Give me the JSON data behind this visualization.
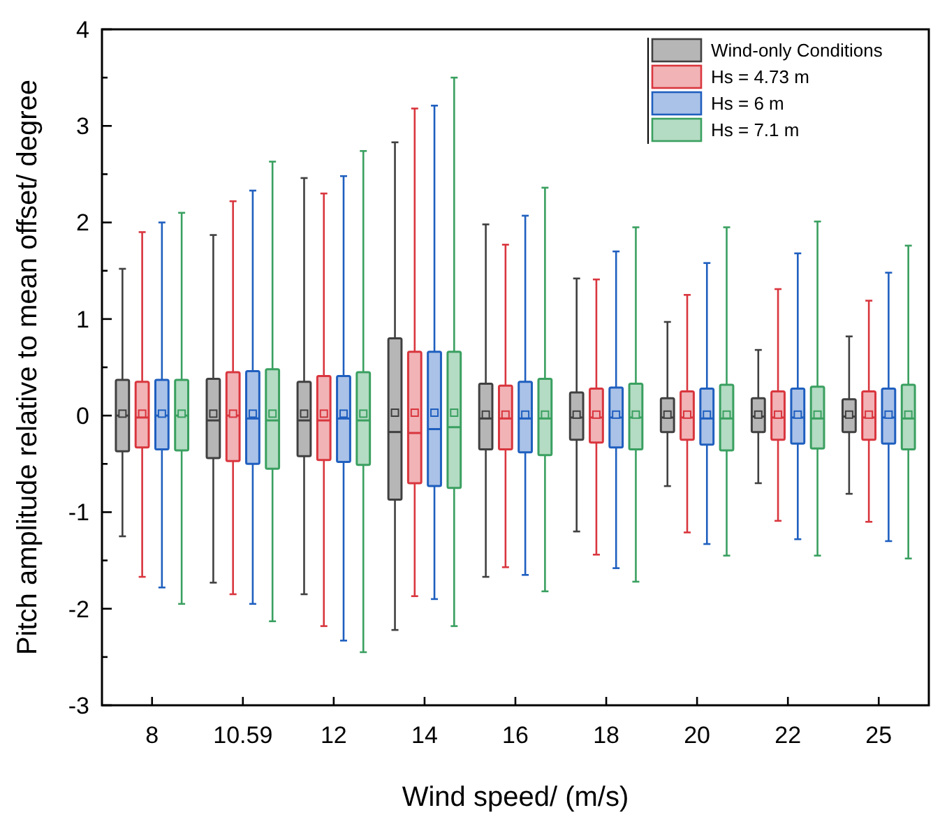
{
  "chart_data": {
    "type": "box",
    "xlabel": "Wind speed/ (m/s)",
    "ylabel": "Pitch amplitude relative to mean offset/ degree",
    "categories": [
      "8",
      "10.59",
      "12",
      "14",
      "16",
      "18",
      "20",
      "22",
      "25"
    ],
    "ylim": [
      -3,
      4
    ],
    "yticks": [
      -3,
      {
        "value": -2.5,
        "label": null
      },
      -2,
      {
        "value": -1.5,
        "label": null
      },
      -1,
      {
        "value": -0.5,
        "label": null
      },
      0,
      {
        "value": 0.5,
        "label": null
      },
      1,
      {
        "value": 1.5,
        "label": null
      },
      2,
      {
        "value": 2.5,
        "label": null
      },
      3,
      {
        "value": 3.5,
        "label": null
      },
      4
    ],
    "legend": "top right",
    "grid": false,
    "series": [
      {
        "name": "Wind-only Conditions",
        "color": "#404040",
        "boxes": [
          {
            "low": -1.25,
            "q1": -0.37,
            "median": 0,
            "q3": 0.37,
            "high": 1.52,
            "mean": 0.02
          },
          {
            "low": -1.73,
            "q1": -0.44,
            "median": -0.05,
            "q3": 0.38,
            "high": 1.87,
            "mean": 0.02
          },
          {
            "low": -1.85,
            "q1": -0.42,
            "median": -0.05,
            "q3": 0.35,
            "high": 2.46,
            "mean": 0.02
          },
          {
            "low": -2.22,
            "q1": -0.87,
            "median": -0.17,
            "q3": 0.8,
            "high": 2.83,
            "mean": 0.03
          },
          {
            "low": -1.67,
            "q1": -0.35,
            "median": -0.03,
            "q3": 0.33,
            "high": 1.98,
            "mean": 0.01
          },
          {
            "low": -1.2,
            "q1": -0.25,
            "median": -0.02,
            "q3": 0.24,
            "high": 1.42,
            "mean": 0.01
          },
          {
            "low": -0.73,
            "q1": -0.17,
            "median": -0.02,
            "q3": 0.18,
            "high": 0.97,
            "mean": 0.01
          },
          {
            "low": -0.7,
            "q1": -0.17,
            "median": -0.01,
            "q3": 0.18,
            "high": 0.68,
            "mean": 0.01
          },
          {
            "low": -0.81,
            "q1": -0.17,
            "median": -0.01,
            "q3": 0.17,
            "high": 0.82,
            "mean": 0.01
          }
        ]
      },
      {
        "name": "Hs = 4.73 m",
        "color": "#d9363e",
        "boxes": [
          {
            "low": -1.67,
            "q1": -0.33,
            "median": -0.02,
            "q3": 0.35,
            "high": 1.9,
            "mean": 0.02
          },
          {
            "low": -1.85,
            "q1": -0.47,
            "median": 0,
            "q3": 0.45,
            "high": 2.22,
            "mean": 0.02
          },
          {
            "low": -2.18,
            "q1": -0.46,
            "median": -0.05,
            "q3": 0.41,
            "high": 2.3,
            "mean": 0.02
          },
          {
            "low": -1.87,
            "q1": -0.7,
            "median": -0.18,
            "q3": 0.66,
            "high": 3.18,
            "mean": 0.03
          },
          {
            "low": -1.57,
            "q1": -0.35,
            "median": -0.03,
            "q3": 0.31,
            "high": 1.77,
            "mean": 0.01
          },
          {
            "low": -1.44,
            "q1": -0.28,
            "median": -0.02,
            "q3": 0.28,
            "high": 1.41,
            "mean": 0.01
          },
          {
            "low": -1.21,
            "q1": -0.25,
            "median": -0.02,
            "q3": 0.25,
            "high": 1.25,
            "mean": 0.01
          },
          {
            "low": -1.09,
            "q1": -0.25,
            "median": -0.02,
            "q3": 0.25,
            "high": 1.31,
            "mean": 0.01
          },
          {
            "low": -1.1,
            "q1": -0.25,
            "median": -0.02,
            "q3": 0.25,
            "high": 1.19,
            "mean": 0.01
          }
        ]
      },
      {
        "name": "Hs = 6 m",
        "color": "#1f5fbf",
        "boxes": [
          {
            "low": -1.78,
            "q1": -0.35,
            "median": 0,
            "q3": 0.37,
            "high": 2.0,
            "mean": 0.02
          },
          {
            "low": -1.95,
            "q1": -0.5,
            "median": -0.03,
            "q3": 0.46,
            "high": 2.33,
            "mean": 0.02
          },
          {
            "low": -2.33,
            "q1": -0.48,
            "median": -0.03,
            "q3": 0.41,
            "high": 2.48,
            "mean": 0.02
          },
          {
            "low": -1.9,
            "q1": -0.73,
            "median": -0.14,
            "q3": 0.66,
            "high": 3.21,
            "mean": 0.03
          },
          {
            "low": -1.65,
            "q1": -0.38,
            "median": -0.03,
            "q3": 0.35,
            "high": 2.07,
            "mean": 0.01
          },
          {
            "low": -1.58,
            "q1": -0.33,
            "median": -0.02,
            "q3": 0.29,
            "high": 1.7,
            "mean": 0.01
          },
          {
            "low": -1.33,
            "q1": -0.3,
            "median": -0.03,
            "q3": 0.28,
            "high": 1.58,
            "mean": 0.01
          },
          {
            "low": -1.28,
            "q1": -0.29,
            "median": -0.02,
            "q3": 0.28,
            "high": 1.68,
            "mean": 0.01
          },
          {
            "low": -1.3,
            "q1": -0.29,
            "median": -0.02,
            "q3": 0.28,
            "high": 1.48,
            "mean": 0.01
          }
        ]
      },
      {
        "name": "Hs = 7.1 m",
        "color": "#3aa060",
        "boxes": [
          {
            "low": -1.95,
            "q1": -0.36,
            "median": 0,
            "q3": 0.37,
            "high": 2.1,
            "mean": 0.02
          },
          {
            "low": -2.13,
            "q1": -0.55,
            "median": -0.05,
            "q3": 0.48,
            "high": 2.63,
            "mean": 0.02
          },
          {
            "low": -2.45,
            "q1": -0.51,
            "median": -0.05,
            "q3": 0.45,
            "high": 2.74,
            "mean": 0.02
          },
          {
            "low": -2.18,
            "q1": -0.75,
            "median": -0.12,
            "q3": 0.66,
            "high": 3.5,
            "mean": 0.03
          },
          {
            "low": -1.82,
            "q1": -0.41,
            "median": -0.03,
            "q3": 0.38,
            "high": 2.36,
            "mean": 0.01
          },
          {
            "low": -1.72,
            "q1": -0.35,
            "median": -0.02,
            "q3": 0.33,
            "high": 1.95,
            "mean": 0.01
          },
          {
            "low": -1.45,
            "q1": -0.36,
            "median": -0.03,
            "q3": 0.32,
            "high": 1.95,
            "mean": 0.01
          },
          {
            "low": -1.45,
            "q1": -0.34,
            "median": -0.03,
            "q3": 0.3,
            "high": 2.01,
            "mean": 0.01
          },
          {
            "low": -1.48,
            "q1": -0.35,
            "median": -0.03,
            "q3": 0.32,
            "high": 1.76,
            "mean": 0.01
          }
        ]
      }
    ]
  }
}
